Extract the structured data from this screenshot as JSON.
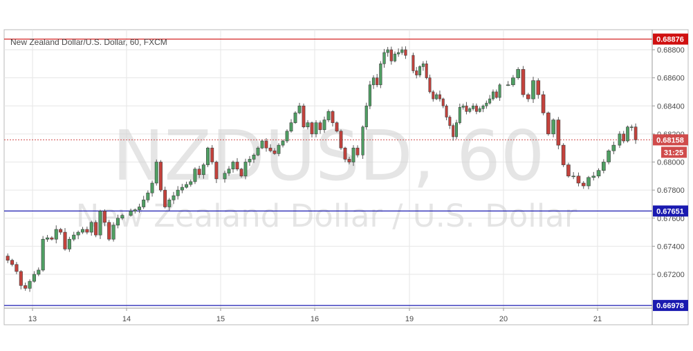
{
  "title": "New Zealand Dollar/U.S. Dollar, 60, FXCM",
  "watermark": {
    "symbol": "NZDUSD, 60",
    "name": "New Zealand Dollar / U.S. Dollar"
  },
  "colors": {
    "up": "#4f9f63",
    "down": "#c4423c",
    "grid": "#e6e6e6",
    "resistance": "#d01010",
    "support": "#1a1ab0",
    "last_price": "#d04b4b"
  },
  "chart_data": {
    "type": "candlestick",
    "symbol": "NZDUSD",
    "timeframe": "60",
    "source": "FXCM",
    "x_ticks": [
      "13",
      "14",
      "15",
      "16",
      "19",
      "20",
      "21"
    ],
    "y_ticks": [
      "0.68800",
      "0.68600",
      "0.68400",
      "0.68200",
      "0.68000",
      "0.67800",
      "0.67600",
      "0.67400",
      "0.67200"
    ],
    "ylim": [
      0.6697,
      0.6893
    ],
    "grid": true,
    "horizontal_lines": [
      {
        "label": "0.68876",
        "value": 0.68876,
        "role": "resistance"
      },
      {
        "label": "0.67651",
        "value": 0.67651,
        "role": "support"
      },
      {
        "label": "0.66978",
        "value": 0.66978,
        "role": "support"
      }
    ],
    "last_price": {
      "label": "0.68158",
      "value": 0.68158,
      "countdown": "31:25"
    },
    "segments": [
      {
        "day": "13",
        "closes": [
          0.673,
          0.6727,
          0.6722,
          0.6712,
          0.671,
          0.6715,
          0.672,
          0.6723,
          0.6745,
          0.6746,
          0.6745,
          0.6752,
          0.675,
          0.6738,
          0.6745,
          0.6748,
          0.675,
          0.6752,
          0.675,
          0.6757,
          0.6748,
          0.6765,
          0.6757,
          0.6745,
          0.6755,
          0.676,
          0.6762
        ]
      },
      {
        "day": "14",
        "closes": [
          0.6765,
          0.6766,
          0.6768,
          0.6773,
          0.6778,
          0.6785,
          0.68,
          0.678,
          0.6768,
          0.6773,
          0.6776,
          0.678,
          0.6782,
          0.6784,
          0.6786,
          0.6795,
          0.6791,
          0.6798,
          0.681,
          0.68,
          0.6788
        ]
      },
      {
        "day": "15",
        "closes": [
          0.6792,
          0.6795,
          0.68,
          0.6795,
          0.679,
          0.68,
          0.6802,
          0.6805,
          0.681,
          0.6815,
          0.681,
          0.6808,
          0.6806,
          0.6812,
          0.6815,
          0.6822,
          0.6828,
          0.6835,
          0.684,
          0.6825,
          0.6828,
          0.682,
          0.6828,
          0.6823,
          0.683,
          0.6836,
          0.6828,
          0.6822,
          0.681,
          0.6802,
          0.68,
          0.681,
          0.6805
        ]
      },
      {
        "day": "16",
        "closes": [
          0.6825,
          0.684,
          0.6855,
          0.686,
          0.6855,
          0.687,
          0.6878,
          0.688,
          0.6872,
          0.6877,
          0.6878,
          0.688,
          0.6876
        ]
      },
      {
        "day": "19",
        "closes": [
          0.6865,
          0.6862,
          0.6868,
          0.687,
          0.686,
          0.685,
          0.6845,
          0.6848,
          0.6845,
          0.684,
          0.6832,
          0.6826,
          0.6818,
          0.6828,
          0.6839,
          0.684,
          0.6836,
          0.6838,
          0.684,
          0.6836,
          0.6838,
          0.684,
          0.6842,
          0.6845,
          0.685,
          0.6846,
          0.6855
        ]
      },
      {
        "day": "20",
        "closes": [
          0.6855,
          0.686,
          0.6866,
          0.6848,
          0.6845,
          0.6858,
          0.6848,
          0.6835,
          0.682,
          0.683,
          0.6812,
          0.6798,
          0.679,
          0.679,
          0.6785,
          0.6783,
          0.6789,
          0.679,
          0.6794,
          0.68,
          0.6808,
          0.6812
        ]
      },
      {
        "day": "21",
        "closes": [
          0.682,
          0.6815,
          0.6825,
          0.6825,
          0.68158
        ]
      }
    ]
  }
}
